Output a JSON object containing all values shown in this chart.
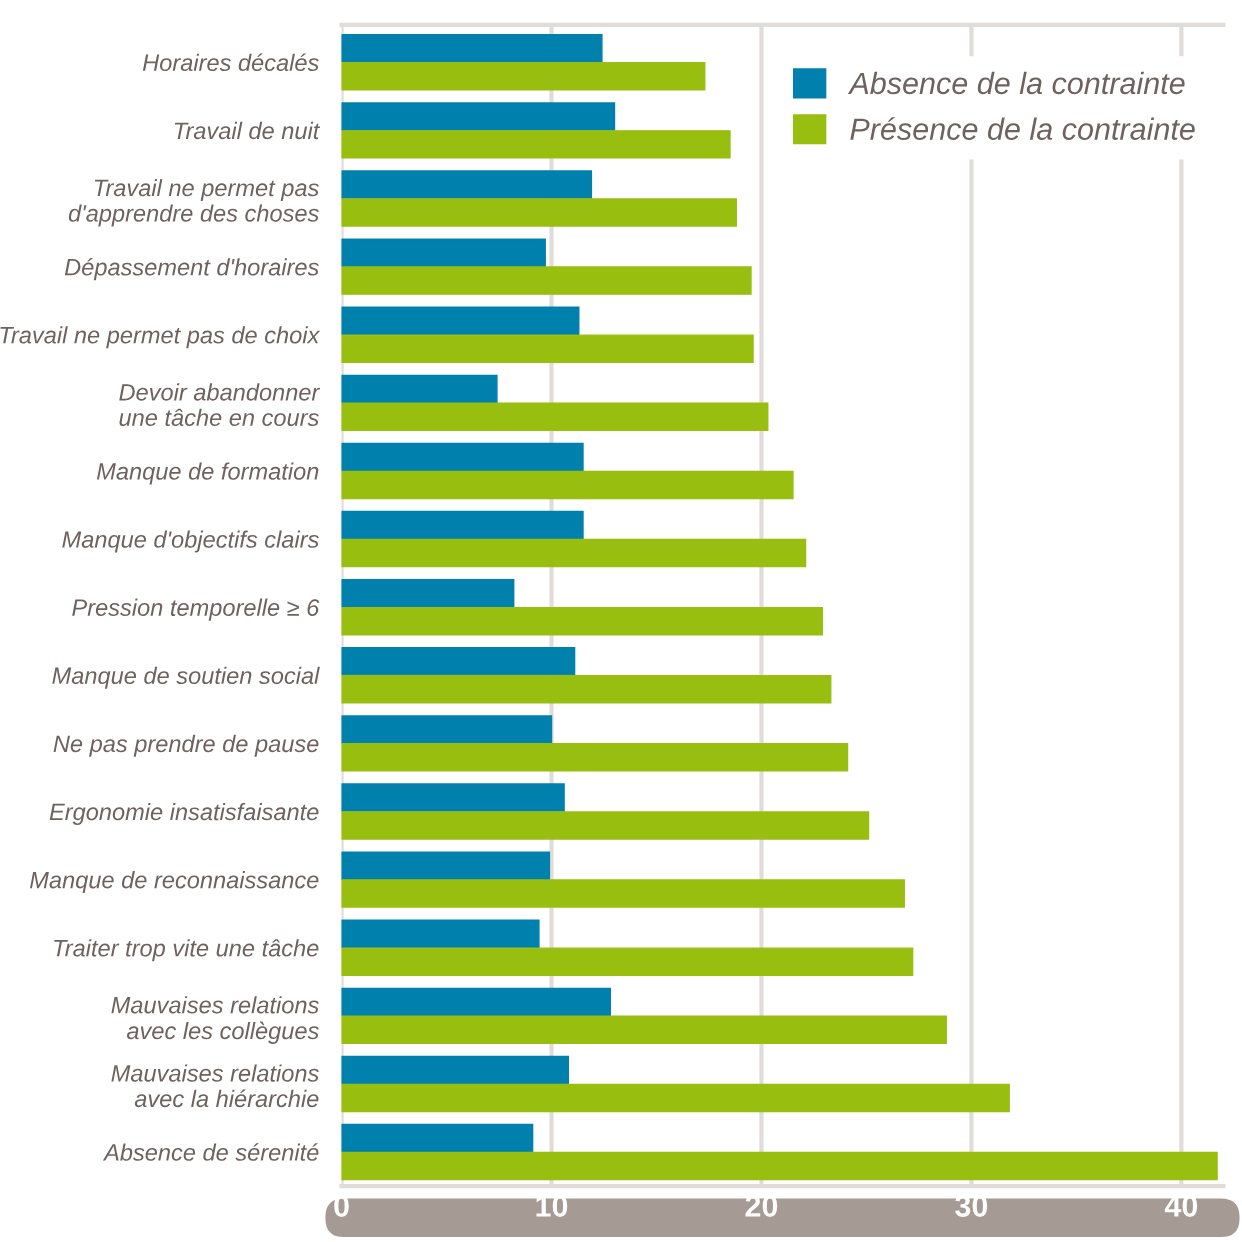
{
  "chart_data": {
    "type": "bar",
    "orientation": "horizontal",
    "categories": [
      "Horaires décalés",
      "Travail de nuit",
      "Travail ne permet pas\nd'apprendre des choses",
      "Dépassement d'horaires",
      "Travail ne permet pas de choix",
      "Devoir abandonner\nune tâche en cours",
      "Manque de formation",
      "Manque d'objectifs clairs",
      "Pression temporelle ≥ 6",
      "Manque de soutien social",
      "Ne pas prendre de pause",
      "Ergonomie insatisfaisante",
      "Manque de reconnaissance",
      "Traiter trop vite une tâche",
      "Mauvaises relations\navec les collègues",
      "Mauvaises relations\navec la hiérarchie",
      "Absence de sérenité"
    ],
    "series": [
      {
        "name": "Absence de la contrainte",
        "color": "#0081ad",
        "values": [
          12.4,
          13.0,
          11.9,
          9.7,
          11.3,
          7.4,
          11.5,
          11.5,
          8.2,
          11.1,
          10.0,
          10.6,
          9.9,
          9.4,
          12.8,
          10.8,
          9.1
        ]
      },
      {
        "name": "Présence de la contrainte",
        "color": "#98bf0f",
        "values": [
          17.3,
          18.5,
          18.8,
          19.5,
          19.6,
          20.3,
          21.5,
          22.1,
          22.9,
          23.3,
          24.1,
          25.1,
          26.8,
          27.2,
          28.8,
          31.8,
          41.7
        ]
      }
    ],
    "xlim": [
      0,
      42
    ],
    "xticks": [
      0,
      10,
      20,
      30,
      40
    ],
    "grid": "x",
    "legend": "top right"
  }
}
